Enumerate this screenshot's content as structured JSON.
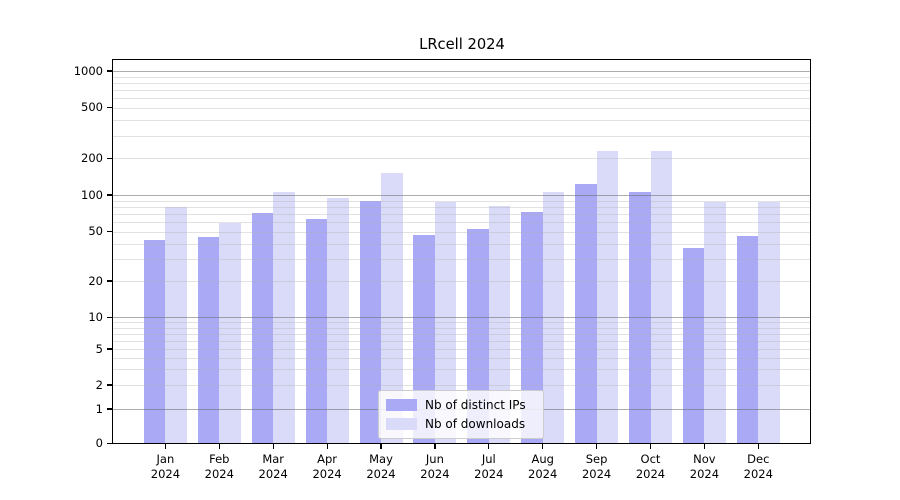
{
  "chart_data": {
    "type": "bar",
    "title": "LRcell 2024",
    "categories": [
      {
        "month": "Jan",
        "year": "2024"
      },
      {
        "month": "Feb",
        "year": "2024"
      },
      {
        "month": "Mar",
        "year": "2024"
      },
      {
        "month": "Apr",
        "year": "2024"
      },
      {
        "month": "May",
        "year": "2024"
      },
      {
        "month": "Jun",
        "year": "2024"
      },
      {
        "month": "Jul",
        "year": "2024"
      },
      {
        "month": "Aug",
        "year": "2024"
      },
      {
        "month": "Sep",
        "year": "2024"
      },
      {
        "month": "Oct",
        "year": "2024"
      },
      {
        "month": "Nov",
        "year": "2024"
      },
      {
        "month": "Dec",
        "year": "2024"
      }
    ],
    "series": [
      {
        "name": "Nb of distinct IPs",
        "color": "#a9a9f6",
        "values": [
          43,
          45,
          71,
          63,
          89,
          47,
          53,
          73,
          122,
          106,
          37,
          46
        ]
      },
      {
        "name": "Nb of downloads",
        "color": "#dadaf9",
        "values": [
          80,
          59,
          105,
          95,
          152,
          88,
          81,
          106,
          229,
          229,
          87,
          87
        ]
      }
    ],
    "yticks": [
      0,
      1,
      2,
      5,
      10,
      20,
      50,
      100,
      200,
      500,
      1000
    ],
    "ylim": [
      0,
      1200
    ],
    "xlabel": "",
    "ylabel": "",
    "yscale": "log-like with 0 baseline",
    "grid": "horizontal major and minor gridlines, drawn over bars",
    "legend_position": "lower center inside plot",
    "colors": {
      "major_grid": "#b3b3b3",
      "minor_grid": "#e7e7e7",
      "axis": "#000000",
      "background": "#ffffff"
    }
  }
}
